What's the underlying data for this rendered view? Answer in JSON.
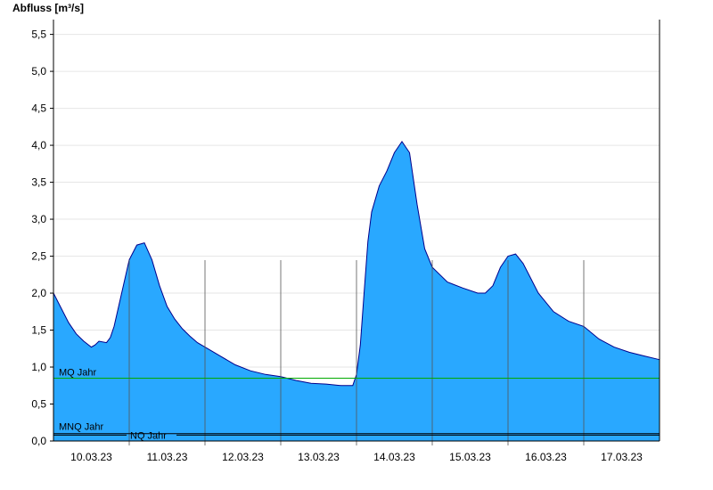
{
  "chart_data": {
    "type": "area",
    "title": "",
    "ylabel": "Abfluss [m³/s]",
    "xlabel": "",
    "ylim": [
      0,
      5.7
    ],
    "xlim": [
      0,
      8
    ],
    "grid": true,
    "yticks": [
      {
        "value": 0.0,
        "label": "0,0"
      },
      {
        "value": 0.5,
        "label": "0,5"
      },
      {
        "value": 1.0,
        "label": "1,0"
      },
      {
        "value": 1.5,
        "label": "1,5"
      },
      {
        "value": 2.0,
        "label": "2,0"
      },
      {
        "value": 2.5,
        "label": "2,5"
      },
      {
        "value": 3.0,
        "label": "3,0"
      },
      {
        "value": 3.5,
        "label": "3,5"
      },
      {
        "value": 4.0,
        "label": "4,0"
      },
      {
        "value": 4.5,
        "label": "4,5"
      },
      {
        "value": 5.0,
        "label": "5,0"
      },
      {
        "value": 5.5,
        "label": "5,5"
      }
    ],
    "day_lines": [
      1,
      2,
      3,
      4,
      5,
      6,
      7
    ],
    "xticks": [
      {
        "value": 0.5,
        "label": "10.03.23"
      },
      {
        "value": 1.5,
        "label": "11.03.23"
      },
      {
        "value": 2.5,
        "label": "12.03.23"
      },
      {
        "value": 3.5,
        "label": "13.03.23"
      },
      {
        "value": 4.5,
        "label": "14.03.23"
      },
      {
        "value": 5.5,
        "label": "15.03.23"
      },
      {
        "value": 6.5,
        "label": "16.03.23"
      },
      {
        "value": 7.5,
        "label": "17.03.23"
      }
    ],
    "series": [
      {
        "color": "#29a8ff",
        "line_color": "#00008b",
        "x": [
          0.0,
          0.1,
          0.2,
          0.3,
          0.4,
          0.5,
          0.55,
          0.6,
          0.7,
          0.75,
          0.8,
          0.9,
          1.0,
          1.1,
          1.2,
          1.3,
          1.4,
          1.5,
          1.6,
          1.7,
          1.8,
          1.9,
          2.0,
          2.2,
          2.4,
          2.6,
          2.8,
          3.0,
          3.2,
          3.4,
          3.6,
          3.8,
          3.9,
          3.95,
          4.0,
          4.05,
          4.1,
          4.15,
          4.2,
          4.3,
          4.4,
          4.5,
          4.6,
          4.7,
          4.8,
          4.9,
          5.0,
          5.2,
          5.4,
          5.6,
          5.7,
          5.8,
          5.9,
          6.0,
          6.1,
          6.2,
          6.3,
          6.4,
          6.6,
          6.8,
          7.0,
          7.2,
          7.4,
          7.6,
          7.8,
          8.0
        ],
        "y": [
          2.0,
          1.8,
          1.6,
          1.45,
          1.35,
          1.27,
          1.3,
          1.35,
          1.33,
          1.4,
          1.55,
          2.0,
          2.45,
          2.65,
          2.68,
          2.45,
          2.1,
          1.82,
          1.65,
          1.52,
          1.42,
          1.33,
          1.27,
          1.15,
          1.03,
          0.95,
          0.9,
          0.87,
          0.82,
          0.78,
          0.77,
          0.75,
          0.75,
          0.75,
          0.9,
          1.3,
          2.0,
          2.7,
          3.1,
          3.45,
          3.65,
          3.9,
          4.05,
          3.9,
          3.2,
          2.6,
          2.35,
          2.15,
          2.07,
          2.0,
          2.0,
          2.1,
          2.35,
          2.5,
          2.53,
          2.4,
          2.2,
          2.0,
          1.75,
          1.62,
          1.55,
          1.38,
          1.27,
          1.2,
          1.15,
          1.1
        ]
      }
    ],
    "reference_lines": [
      {
        "name": "MQ Jahr",
        "value": 0.85,
        "color": "#00aa00"
      },
      {
        "name": "MNQ Jahr",
        "value": 0.1,
        "color": "#000000"
      },
      {
        "name": "NQ Jahr",
        "value": 0.08,
        "color": "#000000"
      }
    ],
    "colors": {
      "grid": "#e6e6e6",
      "day_line": "#555555",
      "axis": "#000000"
    }
  }
}
